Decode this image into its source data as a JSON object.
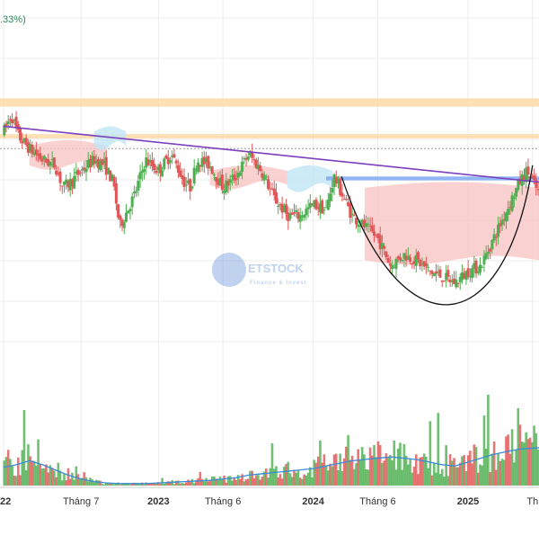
{
  "header": {
    "change_text": ".33%)"
  },
  "watermark": {
    "brand": "ETSTOCK",
    "tagline": "Finance & Invest"
  },
  "colors": {
    "up": "#4caf50",
    "down": "#e05555",
    "trendline": "#7b3fbf",
    "ma_line": "#3a8bd9",
    "resistance_band": "#ffd9a8",
    "support_band": "#7fa8f5",
    "cloud_bear": "#f9c6c6",
    "cloud_bull": "#bfe6f5",
    "cup_curve": "#111111",
    "grid": "#ececec"
  },
  "chart_data": {
    "type": "candlestick",
    "title": "",
    "x_ticks": [
      {
        "label": "22",
        "bold": true,
        "t": 0.0
      },
      {
        "label": "Tháng 7",
        "bold": false,
        "t": 6.0
      },
      {
        "label": "2023",
        "bold": true,
        "t": 12.0
      },
      {
        "label": "Tháng 6",
        "bold": false,
        "t": 17.0
      },
      {
        "label": "2024",
        "bold": true,
        "t": 24.0
      },
      {
        "label": "Tháng 6",
        "bold": false,
        "t": 29.0
      },
      {
        "label": "2025",
        "bold": true,
        "t": 36.0
      },
      {
        "label": "Th",
        "bold": false,
        "t": 41.0
      }
    ],
    "price_anchors": [
      [
        0,
        40
      ],
      [
        0.6,
        43
      ],
      [
        1.2,
        39
      ],
      [
        2.0,
        37
      ],
      [
        3.0,
        35
      ],
      [
        4.0,
        34
      ],
      [
        4.6,
        30
      ],
      [
        5.2,
        31
      ],
      [
        6.0,
        33
      ],
      [
        7.0,
        35
      ],
      [
        7.8,
        34
      ],
      [
        8.5,
        31
      ],
      [
        9.0,
        23
      ],
      [
        9.6,
        26
      ],
      [
        10.2,
        29
      ],
      [
        11.0,
        35
      ],
      [
        12.0,
        33
      ],
      [
        13.0,
        36
      ],
      [
        14.0,
        31
      ],
      [
        14.5,
        30
      ],
      [
        15.0,
        35
      ],
      [
        16.0,
        34
      ],
      [
        17.0,
        30
      ],
      [
        18.0,
        32
      ],
      [
        19.0,
        36
      ],
      [
        20.0,
        33
      ],
      [
        21.0,
        28
      ],
      [
        22.0,
        25
      ],
      [
        23.0,
        25
      ],
      [
        24.0,
        27
      ],
      [
        25.0,
        26
      ],
      [
        25.6,
        32
      ],
      [
        26.0,
        30
      ],
      [
        26.6,
        27
      ],
      [
        27.0,
        25
      ],
      [
        28.0,
        23
      ],
      [
        29.0,
        21
      ],
      [
        30.0,
        16
      ],
      [
        31.0,
        18
      ],
      [
        32.0,
        17
      ],
      [
        33.0,
        15
      ],
      [
        34.0,
        14
      ],
      [
        35.0,
        13
      ],
      [
        36.0,
        15
      ],
      [
        37.0,
        16
      ],
      [
        38.0,
        21
      ],
      [
        39.0,
        26
      ],
      [
        40.0,
        31
      ],
      [
        40.6,
        33
      ],
      [
        41.0,
        31
      ],
      [
        41.5,
        29
      ]
    ],
    "volume_ma": [
      [
        0,
        14
      ],
      [
        1,
        16
      ],
      [
        2,
        19
      ],
      [
        3,
        16
      ],
      [
        4,
        12
      ],
      [
        5,
        8
      ],
      [
        6,
        5
      ],
      [
        7,
        3
      ],
      [
        8,
        2
      ],
      [
        9,
        1.5
      ],
      [
        10,
        1.5
      ],
      [
        11,
        1.5
      ],
      [
        12,
        2
      ],
      [
        13,
        2.5
      ],
      [
        14,
        3
      ],
      [
        15,
        3.5
      ],
      [
        16,
        4
      ],
      [
        17,
        5
      ],
      [
        18,
        6
      ],
      [
        19,
        8
      ],
      [
        20,
        9
      ],
      [
        21,
        10
      ],
      [
        22,
        11
      ],
      [
        23,
        12
      ],
      [
        24,
        13
      ],
      [
        25,
        15
      ],
      [
        26,
        17
      ],
      [
        27,
        19
      ],
      [
        28,
        20
      ],
      [
        29,
        21
      ],
      [
        30,
        22
      ],
      [
        31,
        21
      ],
      [
        32,
        20
      ],
      [
        33,
        18
      ],
      [
        34,
        16
      ],
      [
        35,
        15
      ],
      [
        36,
        18
      ],
      [
        37,
        21
      ],
      [
        38,
        24
      ],
      [
        39,
        26
      ],
      [
        40,
        28
      ],
      [
        41.5,
        29
      ]
    ],
    "trendline": {
      "from": [
        0,
        41
      ],
      "to": [
        41.5,
        31
      ]
    },
    "resistance_bands": [
      [
        44.5,
        46
      ],
      [
        38.8,
        39.6
      ]
    ],
    "support_band": {
      "from_t": 25.0,
      "to_t": 41.5,
      "low": 31.3,
      "high": 32.0
    },
    "dotted_level": 37.0,
    "cup": {
      "from": [
        26.2,
        32
      ],
      "bottom": [
        36.0,
        7.5
      ],
      "to": [
        41.0,
        34
      ]
    },
    "ichimoku_cloud": [
      {
        "t0": 2.0,
        "t1": 8.0,
        "top": 37.5,
        "bottom": 34.0,
        "bullish": false
      },
      {
        "t0": 7.0,
        "t1": 9.5,
        "top": 40.0,
        "bottom": 37.5,
        "bullish": true
      },
      {
        "t0": 16.0,
        "t1": 22.0,
        "top": 33.0,
        "bottom": 30.5,
        "bullish": false
      },
      {
        "t0": 22.0,
        "t1": 25.5,
        "top": 33.0,
        "bottom": 30.0,
        "bullish": true
      },
      {
        "t0": 28.0,
        "t1": 41.5,
        "top": 30.0,
        "bottom": 17.0,
        "bullish": false
      }
    ]
  }
}
